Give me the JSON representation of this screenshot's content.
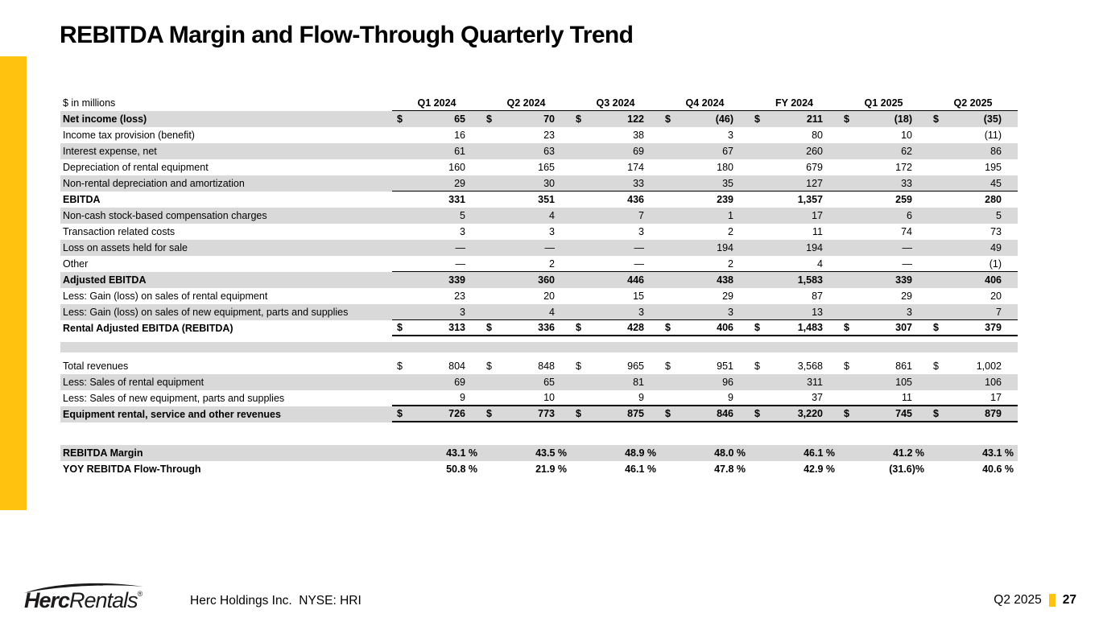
{
  "title": "REBITDA Margin and Flow-Through Quarterly Trend",
  "colors": {
    "accent_yellow": "#FFC20E",
    "stripe_gray": "#D9D9D9"
  },
  "table": {
    "unit_label": "$ in millions",
    "columns": [
      "Q1 2024",
      "Q2 2024",
      "Q3 2024",
      "Q4 2024",
      "FY 2024",
      "Q1 2025",
      "Q2 2025"
    ],
    "rows": [
      {
        "label": "Net income (loss)",
        "bold": true,
        "shaded": true,
        "dollar": true,
        "values": [
          "65",
          "70",
          "122",
          "(46)",
          "211",
          "(18)",
          "(35)"
        ]
      },
      {
        "label": "Income tax provision (benefit)",
        "values": [
          "16",
          "23",
          "38",
          "3",
          "80",
          "10",
          "(11)"
        ]
      },
      {
        "label": "Interest expense, net",
        "shaded": true,
        "values": [
          "61",
          "63",
          "69",
          "67",
          "260",
          "62",
          "86"
        ]
      },
      {
        "label": "Depreciation of rental equipment",
        "values": [
          "160",
          "165",
          "174",
          "180",
          "679",
          "172",
          "195"
        ]
      },
      {
        "label": "Non-rental depreciation and amortization",
        "shaded": true,
        "rule_below": "thin",
        "values": [
          "29",
          "30",
          "33",
          "35",
          "127",
          "33",
          "45"
        ]
      },
      {
        "label": "EBITDA",
        "bold": true,
        "values": [
          "331",
          "351",
          "436",
          "239",
          "1,357",
          "259",
          "280"
        ]
      },
      {
        "label": "Non-cash stock-based compensation charges",
        "shaded": true,
        "values": [
          "5",
          "4",
          "7",
          "1",
          "17",
          "6",
          "5"
        ]
      },
      {
        "label": "Transaction related costs",
        "values": [
          "3",
          "3",
          "3",
          "2",
          "11",
          "74",
          "73"
        ]
      },
      {
        "label": "Loss on assets held for sale",
        "shaded": true,
        "values": [
          "—",
          "—",
          "—",
          "194",
          "194",
          "—",
          "49"
        ]
      },
      {
        "label": "Other",
        "rule_below": "thin",
        "values": [
          "—",
          "2",
          "—",
          "2",
          "4",
          "—",
          "(1)"
        ]
      },
      {
        "label": "Adjusted EBITDA",
        "bold": true,
        "shaded": true,
        "values": [
          "339",
          "360",
          "446",
          "438",
          "1,583",
          "339",
          "406"
        ]
      },
      {
        "label": "Less: Gain (loss) on sales of rental equipment",
        "values": [
          "23",
          "20",
          "15",
          "29",
          "87",
          "29",
          "20"
        ]
      },
      {
        "label": "Less: Gain (loss) on sales of new equipment, parts and supplies",
        "shaded": true,
        "rule_below": "thin",
        "values": [
          "3",
          "4",
          "3",
          "3",
          "13",
          "3",
          "7"
        ]
      },
      {
        "label": "Rental Adjusted EBITDA (REBITDA)",
        "bold": true,
        "dollar": true,
        "rule_below": "thick",
        "values": [
          "313",
          "336",
          "428",
          "406",
          "1,483",
          "307",
          "379"
        ]
      },
      {
        "type": "spacer"
      },
      {
        "label": "Total revenues",
        "dollar": true,
        "values": [
          "804",
          "848",
          "965",
          "951",
          "3,568",
          "861",
          "1,002"
        ]
      },
      {
        "label": "Less: Sales of rental equipment",
        "shaded": true,
        "values": [
          "69",
          "65",
          "81",
          "96",
          "311",
          "105",
          "106"
        ]
      },
      {
        "label": "Less: Sales of new equipment, parts and supplies",
        "rule_below": "thick",
        "values": [
          "9",
          "10",
          "9",
          "9",
          "37",
          "11",
          "17"
        ]
      },
      {
        "label": "Equipment rental, service and other revenues",
        "bold": true,
        "shaded": true,
        "dollar": true,
        "rule_below": "thick",
        "values": [
          "726",
          "773",
          "875",
          "846",
          "3,220",
          "745",
          "879"
        ]
      },
      {
        "type": "gap"
      },
      {
        "label": "REBITDA Margin",
        "bold": true,
        "shaded": true,
        "values": [
          "43.1 %",
          "43.5 %",
          "48.9 %",
          "48.0 %",
          "46.1 %",
          "41.2 %",
          "43.1 %"
        ]
      },
      {
        "label": "YOY REBITDA Flow-Through",
        "bold": true,
        "values": [
          "50.8 %",
          "21.9 %",
          "46.1 %",
          "47.8 %",
          "42.9 %",
          "(31.6)%",
          "40.6 %"
        ]
      }
    ]
  },
  "footer": {
    "logo_bold": "Herc",
    "logo_light": "Rentals",
    "logo_reg": "®",
    "company_line": "Herc Holdings Inc.  NYSE: HRI",
    "period": "Q2 2025",
    "page_number": "27"
  }
}
